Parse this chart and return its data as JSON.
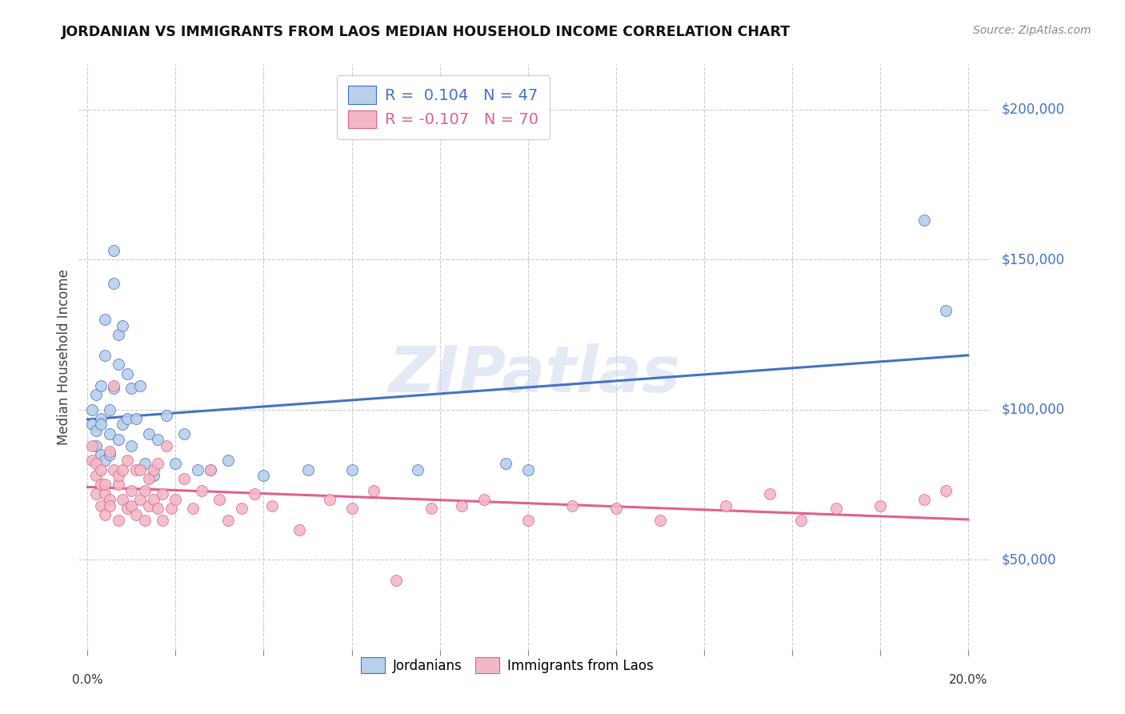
{
  "title": "JORDANIAN VS IMMIGRANTS FROM LAOS MEDIAN HOUSEHOLD INCOME CORRELATION CHART",
  "source": "Source: ZipAtlas.com",
  "ylabel": "Median Household Income",
  "watermark": "ZIPatlas",
  "jordanians": {
    "R": 0.104,
    "N": 47,
    "color": "#b8d0ea",
    "line_color": "#4472c4",
    "x": [
      0.001,
      0.001,
      0.002,
      0.002,
      0.002,
      0.003,
      0.003,
      0.003,
      0.003,
      0.004,
      0.004,
      0.004,
      0.005,
      0.005,
      0.005,
      0.006,
      0.006,
      0.006,
      0.007,
      0.007,
      0.007,
      0.008,
      0.008,
      0.009,
      0.009,
      0.01,
      0.01,
      0.011,
      0.012,
      0.013,
      0.014,
      0.015,
      0.016,
      0.018,
      0.02,
      0.022,
      0.025,
      0.028,
      0.032,
      0.04,
      0.05,
      0.06,
      0.075,
      0.095,
      0.1,
      0.19,
      0.195
    ],
    "y": [
      95000,
      100000,
      93000,
      105000,
      88000,
      97000,
      85000,
      95000,
      108000,
      118000,
      130000,
      83000,
      92000,
      85000,
      100000,
      142000,
      153000,
      107000,
      115000,
      125000,
      90000,
      128000,
      95000,
      112000,
      97000,
      107000,
      88000,
      97000,
      108000,
      82000,
      92000,
      78000,
      90000,
      98000,
      82000,
      92000,
      80000,
      80000,
      83000,
      78000,
      80000,
      80000,
      80000,
      82000,
      80000,
      163000,
      133000
    ]
  },
  "laos": {
    "R": -0.107,
    "N": 70,
    "color": "#f2b8c6",
    "line_color": "#e06090",
    "x": [
      0.001,
      0.001,
      0.002,
      0.002,
      0.002,
      0.003,
      0.003,
      0.003,
      0.004,
      0.004,
      0.004,
      0.005,
      0.005,
      0.005,
      0.006,
      0.006,
      0.007,
      0.007,
      0.007,
      0.008,
      0.008,
      0.009,
      0.009,
      0.01,
      0.01,
      0.011,
      0.011,
      0.012,
      0.012,
      0.013,
      0.013,
      0.014,
      0.014,
      0.015,
      0.015,
      0.016,
      0.016,
      0.017,
      0.017,
      0.018,
      0.019,
      0.02,
      0.022,
      0.024,
      0.026,
      0.028,
      0.03,
      0.032,
      0.035,
      0.038,
      0.042,
      0.048,
      0.055,
      0.06,
      0.065,
      0.07,
      0.078,
      0.085,
      0.09,
      0.1,
      0.11,
      0.12,
      0.13,
      0.145,
      0.155,
      0.162,
      0.17,
      0.18,
      0.19,
      0.195
    ],
    "y": [
      88000,
      83000,
      78000,
      82000,
      72000,
      75000,
      68000,
      80000,
      72000,
      65000,
      75000,
      86000,
      70000,
      68000,
      80000,
      108000,
      75000,
      63000,
      78000,
      80000,
      70000,
      67000,
      83000,
      73000,
      68000,
      80000,
      65000,
      70000,
      80000,
      73000,
      63000,
      68000,
      77000,
      70000,
      80000,
      67000,
      82000,
      72000,
      63000,
      88000,
      67000,
      70000,
      77000,
      67000,
      73000,
      80000,
      70000,
      63000,
      67000,
      72000,
      68000,
      60000,
      70000,
      67000,
      73000,
      43000,
      67000,
      68000,
      70000,
      63000,
      68000,
      67000,
      63000,
      68000,
      72000,
      63000,
      67000,
      68000,
      70000,
      73000
    ]
  },
  "ylim": [
    20000,
    215000
  ],
  "xlim": [
    -0.002,
    0.205
  ],
  "yticks": [
    50000,
    100000,
    150000,
    200000
  ],
  "ytick_labels": [
    "$50,000",
    "$100,000",
    "$150,000",
    "$200,000"
  ],
  "xticks": [
    0.0,
    0.02,
    0.04,
    0.06,
    0.08,
    0.1,
    0.12,
    0.14,
    0.16,
    0.18,
    0.2
  ],
  "background_color": "#ffffff",
  "grid_color": "#cccccc"
}
